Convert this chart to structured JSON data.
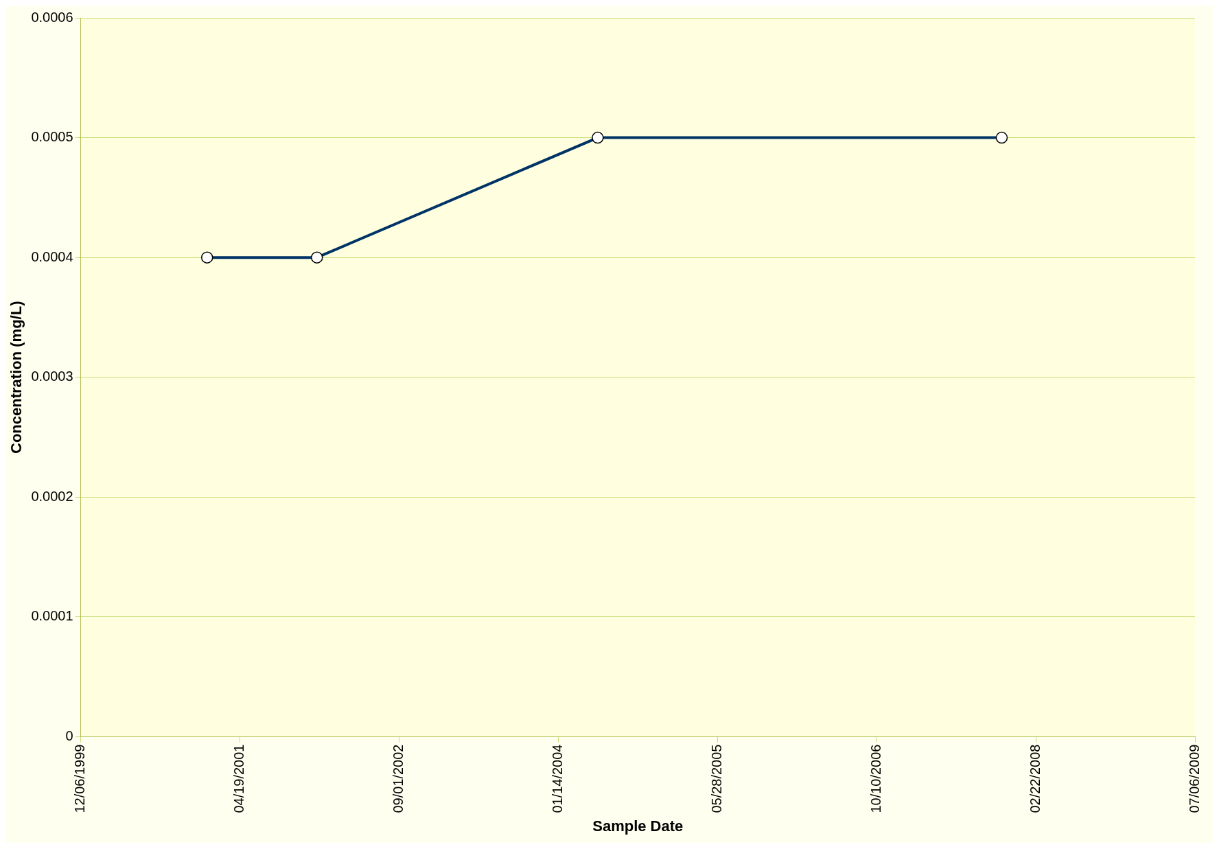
{
  "chart_data": {
    "type": "line",
    "xlabel": "Sample Date",
    "ylabel": "Concentration (mg/L)",
    "x": [
      "2001-01-06",
      "2001-12-17",
      "2004-05-17",
      "2007-11-07"
    ],
    "series": [
      {
        "color": "#003366",
        "values": [
          0.0004,
          0.0004,
          0.0005,
          0.0005
        ]
      }
    ],
    "xlim": [
      "1999-12-06",
      "2009-07-06"
    ],
    "xticks": [
      {
        "value": "1999-12-06",
        "label": "12/06/1999"
      },
      {
        "value": "2001-04-19",
        "label": "04/19/2001"
      },
      {
        "value": "2002-09-01",
        "label": "09/01/2002"
      },
      {
        "value": "2004-01-14",
        "label": "01/14/2004"
      },
      {
        "value": "2005-05-28",
        "label": "05/28/2005"
      },
      {
        "value": "2006-10-10",
        "label": "10/10/2006"
      },
      {
        "value": "2008-02-22",
        "label": "02/22/2008"
      },
      {
        "value": "2009-07-06",
        "label": "07/06/2009"
      }
    ],
    "ylim": [
      0,
      0.0006
    ],
    "yticks": [
      0,
      0.0001,
      0.0002,
      0.0003,
      0.0004,
      0.0005,
      0.0006
    ],
    "grid": "y",
    "marker": "circle",
    "line_style": "solid",
    "legend": false
  }
}
